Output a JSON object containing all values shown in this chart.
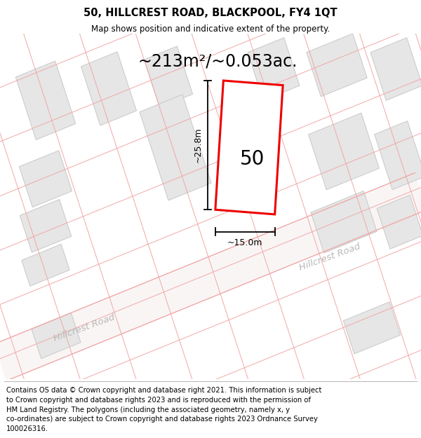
{
  "title": "50, HILLCREST ROAD, BLACKPOOL, FY4 1QT",
  "subtitle": "Map shows position and indicative extent of the property.",
  "area_label": "~213m²/~0.053ac.",
  "property_number": "50",
  "dim_vertical": "~25.8m",
  "dim_horizontal": "~15.0m",
  "road_label": "Hillcrest Road",
  "road_label2": "Hillcrest Road",
  "footer": "Contains OS data © Crown copyright and database right 2021. This information is subject\nto Crown copyright and database rights 2023 and is reproduced with the permission of\nHM Land Registry. The polygons (including the associated geometry, namely x, y\nco-ordinates) are subject to Crown copyright and database rights 2023 Ordnance Survey\n100026316.",
  "bg_color": "#ffffff",
  "map_bg": "#ffffff",
  "building_color": "#e6e6e6",
  "building_edge": "#c8c8c8",
  "road_line_color": "#f0a8a8",
  "property_edge_color": "#ee0000",
  "title_fontsize": 10.5,
  "subtitle_fontsize": 8.5,
  "area_fontsize": 17,
  "footer_fontsize": 7.2,
  "road_label_fontsize": 9.5,
  "map_xlim": [
    0,
    600
  ],
  "map_ylim": [
    0,
    440
  ]
}
